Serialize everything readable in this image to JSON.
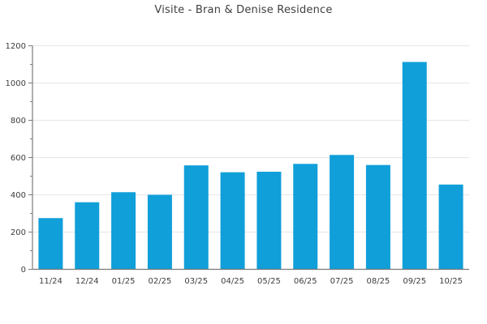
{
  "chart_data": {
    "type": "bar",
    "title": "Visite - Bran & Denise Residence",
    "categories": [
      "11/24",
      "12/24",
      "01/25",
      "02/25",
      "03/25",
      "04/25",
      "05/25",
      "06/25",
      "07/25",
      "08/25",
      "09/25",
      "10/25"
    ],
    "values": [
      275,
      360,
      414,
      400,
      558,
      521,
      524,
      566,
      614,
      560,
      1113,
      455
    ],
    "xlabel": "",
    "ylabel": "",
    "ylim": [
      0,
      1200
    ],
    "ytick_step": 200,
    "yticks": [
      0,
      200,
      400,
      600,
      800,
      1000,
      1200
    ],
    "minor_tick_step": 100,
    "grid": "horizontal-major",
    "legend": "none",
    "colors": {
      "bar": "#109fd9",
      "grid": "#e6e6e6",
      "axis": "#7a7a7a",
      "tick_label": "#3d3d3d",
      "title": "#404040",
      "background": "#ffffff"
    }
  }
}
